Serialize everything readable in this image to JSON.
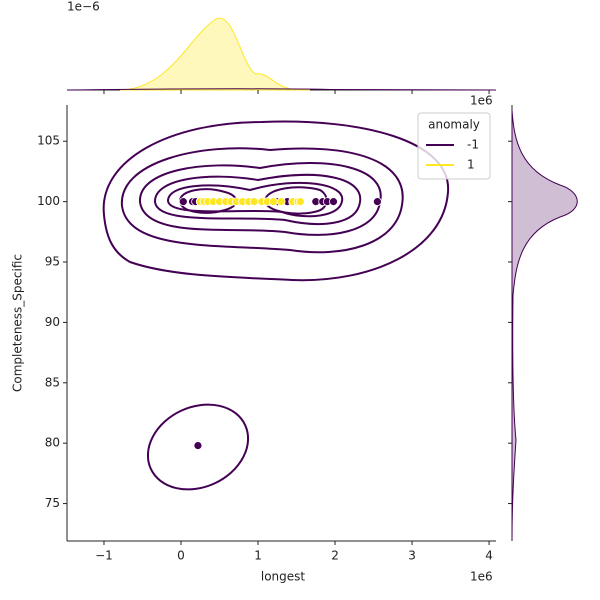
{
  "chart_data": {
    "type": "scatter",
    "xlabel": "longest",
    "ylabel": "Completeness_Specific",
    "x_offset_label": "1e6",
    "top_offset_label": "1e6",
    "density_offset_label": "1e−6",
    "xlim": [
      -1.48,
      4.09
    ],
    "ylim": [
      71.9,
      108
    ],
    "xticks": [
      {
        "value": -1,
        "label": "−1"
      },
      0,
      1,
      2,
      3,
      4
    ],
    "yticks": [
      75,
      80,
      85,
      90,
      95,
      100,
      105
    ],
    "legend": {
      "title": "anomaly",
      "loc": "upper right"
    },
    "series": [
      {
        "name": "-1",
        "color": "#440154",
        "x": [
          0.03,
          0.15,
          0.19,
          1.25,
          1.38,
          1.75,
          1.84,
          1.9,
          1.98,
          2.55,
          0.22
        ],
        "y": [
          100,
          100,
          100,
          100,
          100,
          100,
          100,
          100,
          100,
          100,
          79.8
        ]
      },
      {
        "name": "1",
        "color": "#fde725",
        "x": [
          0.25,
          0.3,
          0.35,
          0.42,
          0.5,
          0.58,
          0.65,
          0.72,
          0.8,
          0.88,
          0.95,
          1.05,
          1.12,
          1.2,
          1.3,
          1.45,
          1.52,
          1.55
        ],
        "y": [
          100,
          100,
          100,
          100,
          100,
          100,
          100,
          100,
          100,
          100,
          100,
          100,
          100,
          100,
          100,
          100,
          100,
          100
        ]
      }
    ]
  }
}
